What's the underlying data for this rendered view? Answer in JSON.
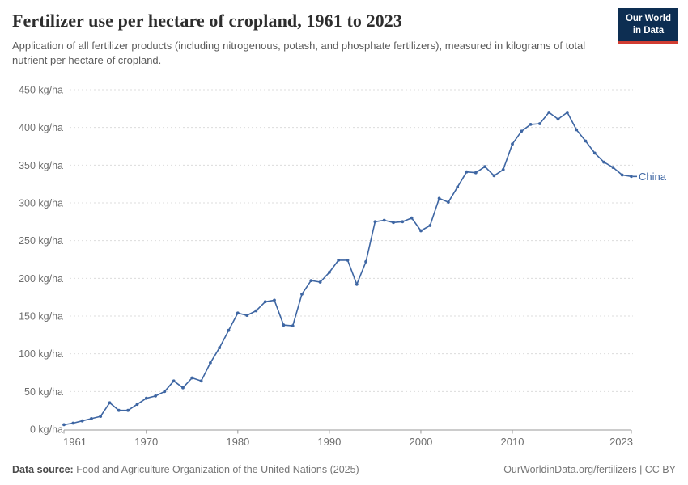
{
  "header": {
    "title": "Fertilizer use per hectare of cropland, 1961 to 2023",
    "subtitle": "Application of all fertilizer products (including nitrogenous, potash, and phosphate fertilizers), measured in kilograms of total nutrient per hectare of cropland."
  },
  "logo": {
    "line1": "Our World",
    "line2": "in Data",
    "bg_color": "#0d2e52",
    "accent_color": "#d13d32"
  },
  "chart_data": {
    "type": "line",
    "title": "Fertilizer use per hectare of cropland, 1961 to 2023",
    "xlabel": "",
    "ylabel": "kg/ha",
    "unit": "kg/ha",
    "ylim": [
      0,
      450
    ],
    "yticks": [
      0,
      50,
      100,
      150,
      200,
      250,
      300,
      350,
      400,
      450
    ],
    "xticks": [
      1961,
      1970,
      1980,
      1990,
      2000,
      2010,
      2023
    ],
    "grid": "horizontal-dashed",
    "legend_position": "end-of-line",
    "x": [
      1961,
      1962,
      1963,
      1964,
      1965,
      1966,
      1967,
      1968,
      1969,
      1970,
      1971,
      1972,
      1973,
      1974,
      1975,
      1976,
      1977,
      1978,
      1979,
      1980,
      1981,
      1982,
      1983,
      1984,
      1985,
      1986,
      1987,
      1988,
      1989,
      1990,
      1991,
      1992,
      1993,
      1994,
      1995,
      1996,
      1997,
      1998,
      1999,
      2000,
      2001,
      2002,
      2003,
      2004,
      2005,
      2006,
      2007,
      2008,
      2009,
      2010,
      2011,
      2012,
      2013,
      2014,
      2015,
      2016,
      2017,
      2018,
      2019,
      2020,
      2021,
      2022,
      2023
    ],
    "series": [
      {
        "name": "China",
        "color": "#3e66a3",
        "values": [
          6,
          8,
          11,
          14,
          17,
          35,
          25,
          25,
          33,
          41,
          44,
          50,
          64,
          55,
          68,
          64,
          88,
          108,
          131,
          154,
          151,
          157,
          169,
          171,
          138,
          137,
          179,
          197,
          195,
          208,
          224,
          224,
          192,
          222,
          275,
          277,
          274,
          275,
          280,
          263,
          270,
          306,
          301,
          321,
          341,
          340,
          348,
          336,
          344,
          378,
          395,
          404,
          405,
          420,
          411,
          420,
          397,
          382,
          366,
          354,
          347,
          337,
          335
        ]
      }
    ]
  },
  "footer": {
    "datasource_label": "Data source:",
    "datasource_text": " Food and Agriculture Organization of the United Nations (2025)",
    "credit": "OurWorldinData.org/fertilizers | CC BY"
  }
}
